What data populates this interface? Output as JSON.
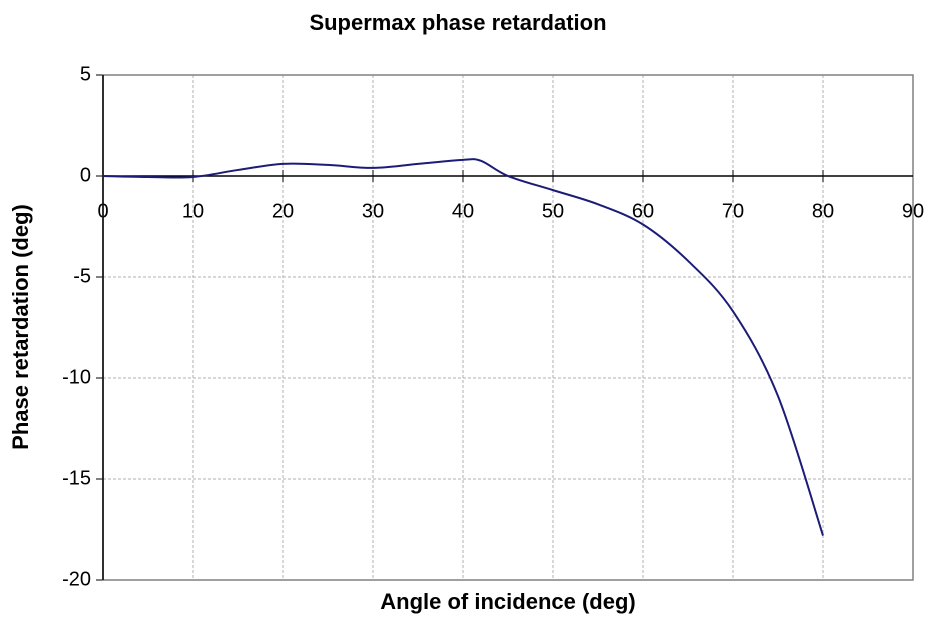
{
  "chart_data": {
    "type": "line",
    "title": "Supermax phase retardation",
    "x_label": "Angle of incidence (deg)",
    "y_label": "Phase retardation (deg)",
    "x": [
      0,
      5,
      10,
      15,
      20,
      25,
      30,
      35,
      40,
      42,
      45,
      50,
      55,
      60,
      65,
      70,
      75,
      80
    ],
    "values": [
      0,
      -0.05,
      -0.05,
      0.3,
      0.6,
      0.55,
      0.4,
      0.6,
      0.8,
      0.75,
      0,
      -0.7,
      -1.4,
      -2.4,
      -4.2,
      -6.7,
      -10.9,
      -17.8
    ],
    "color": "#1c1c78",
    "xlim": [
      0,
      90
    ],
    "xticks": [
      0,
      10,
      20,
      30,
      40,
      50,
      60,
      70,
      80,
      90
    ],
    "ylim": [
      -20,
      5
    ],
    "yticks": [
      -20,
      -15,
      -10,
      -5,
      0,
      5
    ],
    "grid": true
  }
}
